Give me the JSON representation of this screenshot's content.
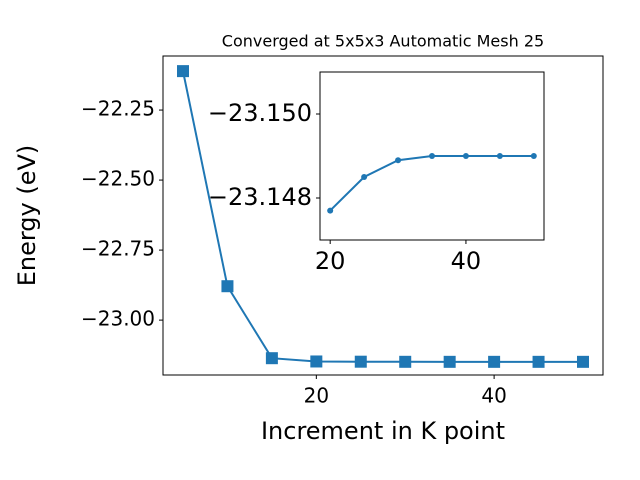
{
  "chart_data": [
    {
      "type": "line",
      "title": "Converged at 5x5x3 Automatic Mesh 25",
      "x_label": "Increment in K point",
      "y_label": "Energy (eV)",
      "x": [
        5,
        10,
        15,
        20,
        25,
        30,
        35,
        40,
        45,
        50
      ],
      "series": [
        {
          "color": "#1f77b4",
          "marker": "square",
          "values": [
            -22.111,
            -22.879,
            -23.136,
            -23.1477,
            -23.1485,
            -23.1489,
            -23.149,
            -23.149,
            -23.149,
            -23.149
          ]
        }
      ],
      "xlim": [
        2.75,
        52.25
      ],
      "ylim": [
        -23.196,
        -22.057
      ],
      "xticks": [
        20,
        40
      ],
      "yticks": [
        {
          "value": -22.25,
          "label": "−22.25"
        },
        {
          "value": -22.5,
          "label": "−22.50"
        },
        {
          "value": -22.75,
          "label": "−22.75"
        },
        {
          "value": -23.0,
          "label": "−23.00"
        }
      ]
    },
    {
      "type": "line",
      "x": [
        20,
        25,
        30,
        35,
        40,
        45,
        50
      ],
      "series": [
        {
          "color": "#1f77b4",
          "marker": "circle",
          "values": [
            -23.1477,
            -23.1485,
            -23.1489,
            -23.149,
            -23.149,
            -23.149,
            -23.149
          ]
        }
      ],
      "xlim": [
        18.5,
        51.5
      ],
      "ylim": [
        -23.151,
        -23.147
      ],
      "y_inverted": true,
      "xticks": [
        20,
        40
      ],
      "yticks": [
        {
          "value": -23.15,
          "label": "−23.150"
        },
        {
          "value": -23.148,
          "label": "−23.148"
        }
      ]
    }
  ]
}
